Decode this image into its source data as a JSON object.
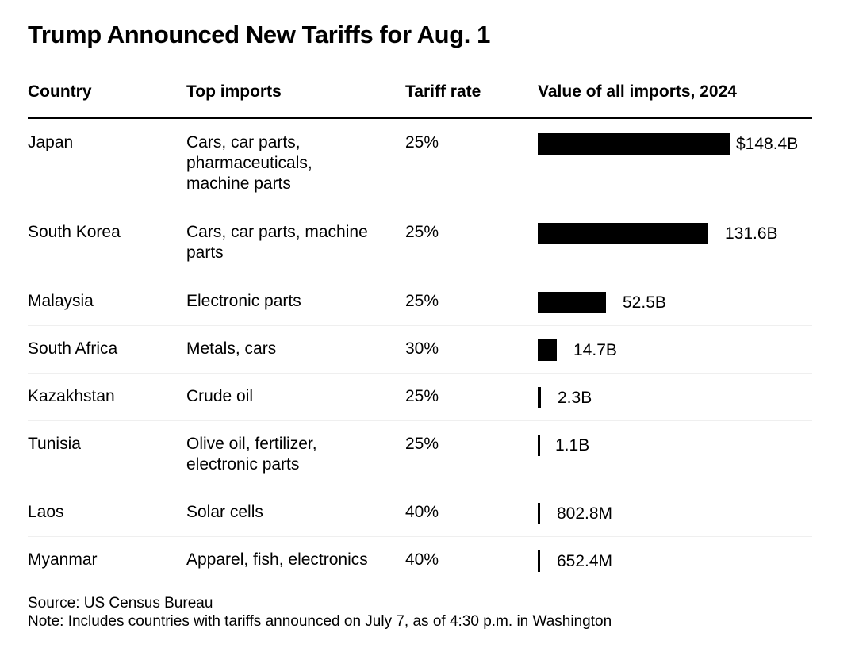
{
  "chart_data": {
    "type": "table",
    "title": "Trump Announced New Tariffs for Aug. 1",
    "columns": [
      "Country",
      "Top imports",
      "Tariff rate",
      "Value of all imports, 2024"
    ],
    "rows": [
      {
        "country": "Japan",
        "imports": [
          "Cars, car parts,",
          "pharmaceuticals,",
          "machine parts"
        ],
        "rate": "25%",
        "value": 148.4,
        "value_label": "$148.4B"
      },
      {
        "country": "South Korea",
        "imports": [
          "Cars, car parts, machine",
          "parts"
        ],
        "rate": "25%",
        "value": 131.6,
        "value_label": "131.6B"
      },
      {
        "country": "Malaysia",
        "imports": [
          "Electronic parts"
        ],
        "rate": "25%",
        "value": 52.5,
        "value_label": "52.5B"
      },
      {
        "country": "South Africa",
        "imports": [
          "Metals, cars"
        ],
        "rate": "30%",
        "value": 14.7,
        "value_label": "14.7B"
      },
      {
        "country": "Kazakhstan",
        "imports": [
          "Crude oil"
        ],
        "rate": "25%",
        "value": 2.3,
        "value_label": "2.3B"
      },
      {
        "country": "Tunisia",
        "imports": [
          "Olive oil, fertilizer,",
          "electronic parts"
        ],
        "rate": "25%",
        "value": 1.1,
        "value_label": "1.1B"
      },
      {
        "country": "Laos",
        "imports": [
          "Solar cells"
        ],
        "rate": "40%",
        "value": 0.8028,
        "value_label": "802.8M"
      },
      {
        "country": "Myanmar",
        "imports": [
          "Apparel, fish, electronics"
        ],
        "rate": "40%",
        "value": 0.6524,
        "value_label": "652.4M"
      }
    ],
    "value_unit": "USD billions",
    "xlim": [
      0,
      148.4
    ]
  },
  "footer": {
    "source": "Source: US Census Bureau",
    "note": "Note: Includes countries with tariffs announced on July 7, as of 4:30 p.m. in Washington"
  },
  "colors": {
    "bar": "#000000",
    "text": "#000000",
    "row_separator": "#efefef",
    "background": "#ffffff"
  }
}
